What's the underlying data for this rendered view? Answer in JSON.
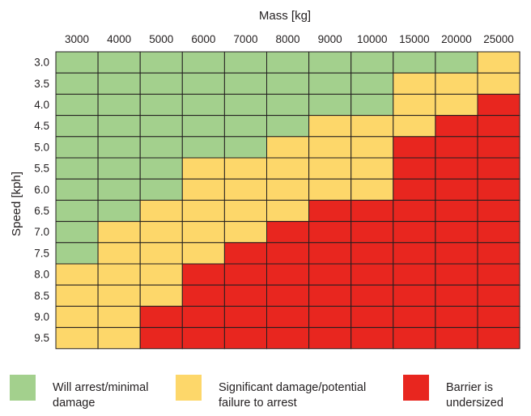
{
  "chart_data": {
    "type": "heatmap",
    "xlabel": "Mass [kg]",
    "ylabel": "Speed [kph]",
    "x_categories": [
      "3000",
      "4000",
      "5000",
      "6000",
      "7000",
      "8000",
      "9000",
      "10000",
      "15000",
      "20000",
      "25000"
    ],
    "y_categories": [
      "3.0",
      "3.5",
      "4.0",
      "4.5",
      "5.0",
      "5.5",
      "6.0",
      "6.5",
      "7.0",
      "7.5",
      "8.0",
      "8.5",
      "9.0",
      "9.5"
    ],
    "levels": [
      {
        "id": "green",
        "label": "Will arrest/minimal damage",
        "color": "#a3d08d"
      },
      {
        "id": "yellow",
        "label": "Significant damage/potential failure to arrest",
        "color": "#fdd76a"
      },
      {
        "id": "red",
        "label": "Barrier is undersized",
        "color": "#e8261f"
      }
    ],
    "cells": [
      [
        "green",
        "green",
        "green",
        "green",
        "green",
        "green",
        "green",
        "green",
        "green",
        "green",
        "yellow"
      ],
      [
        "green",
        "green",
        "green",
        "green",
        "green",
        "green",
        "green",
        "green",
        "yellow",
        "yellow",
        "yellow"
      ],
      [
        "green",
        "green",
        "green",
        "green",
        "green",
        "green",
        "green",
        "green",
        "yellow",
        "yellow",
        "red"
      ],
      [
        "green",
        "green",
        "green",
        "green",
        "green",
        "green",
        "yellow",
        "yellow",
        "yellow",
        "red",
        "red"
      ],
      [
        "green",
        "green",
        "green",
        "green",
        "green",
        "yellow",
        "yellow",
        "yellow",
        "red",
        "red",
        "red"
      ],
      [
        "green",
        "green",
        "green",
        "yellow",
        "yellow",
        "yellow",
        "yellow",
        "yellow",
        "red",
        "red",
        "red"
      ],
      [
        "green",
        "green",
        "green",
        "yellow",
        "yellow",
        "yellow",
        "yellow",
        "yellow",
        "red",
        "red",
        "red"
      ],
      [
        "green",
        "green",
        "yellow",
        "yellow",
        "yellow",
        "yellow",
        "red",
        "red",
        "red",
        "red",
        "red"
      ],
      [
        "green",
        "yellow",
        "yellow",
        "yellow",
        "yellow",
        "red",
        "red",
        "red",
        "red",
        "red",
        "red"
      ],
      [
        "green",
        "yellow",
        "yellow",
        "yellow",
        "red",
        "red",
        "red",
        "red",
        "red",
        "red",
        "red"
      ],
      [
        "yellow",
        "yellow",
        "yellow",
        "red",
        "red",
        "red",
        "red",
        "red",
        "red",
        "red",
        "red"
      ],
      [
        "yellow",
        "yellow",
        "yellow",
        "red",
        "red",
        "red",
        "red",
        "red",
        "red",
        "red",
        "red"
      ],
      [
        "yellow",
        "yellow",
        "red",
        "red",
        "red",
        "red",
        "red",
        "red",
        "red",
        "red",
        "red"
      ],
      [
        "yellow",
        "yellow",
        "red",
        "red",
        "red",
        "red",
        "red",
        "red",
        "red",
        "red",
        "red"
      ]
    ]
  }
}
